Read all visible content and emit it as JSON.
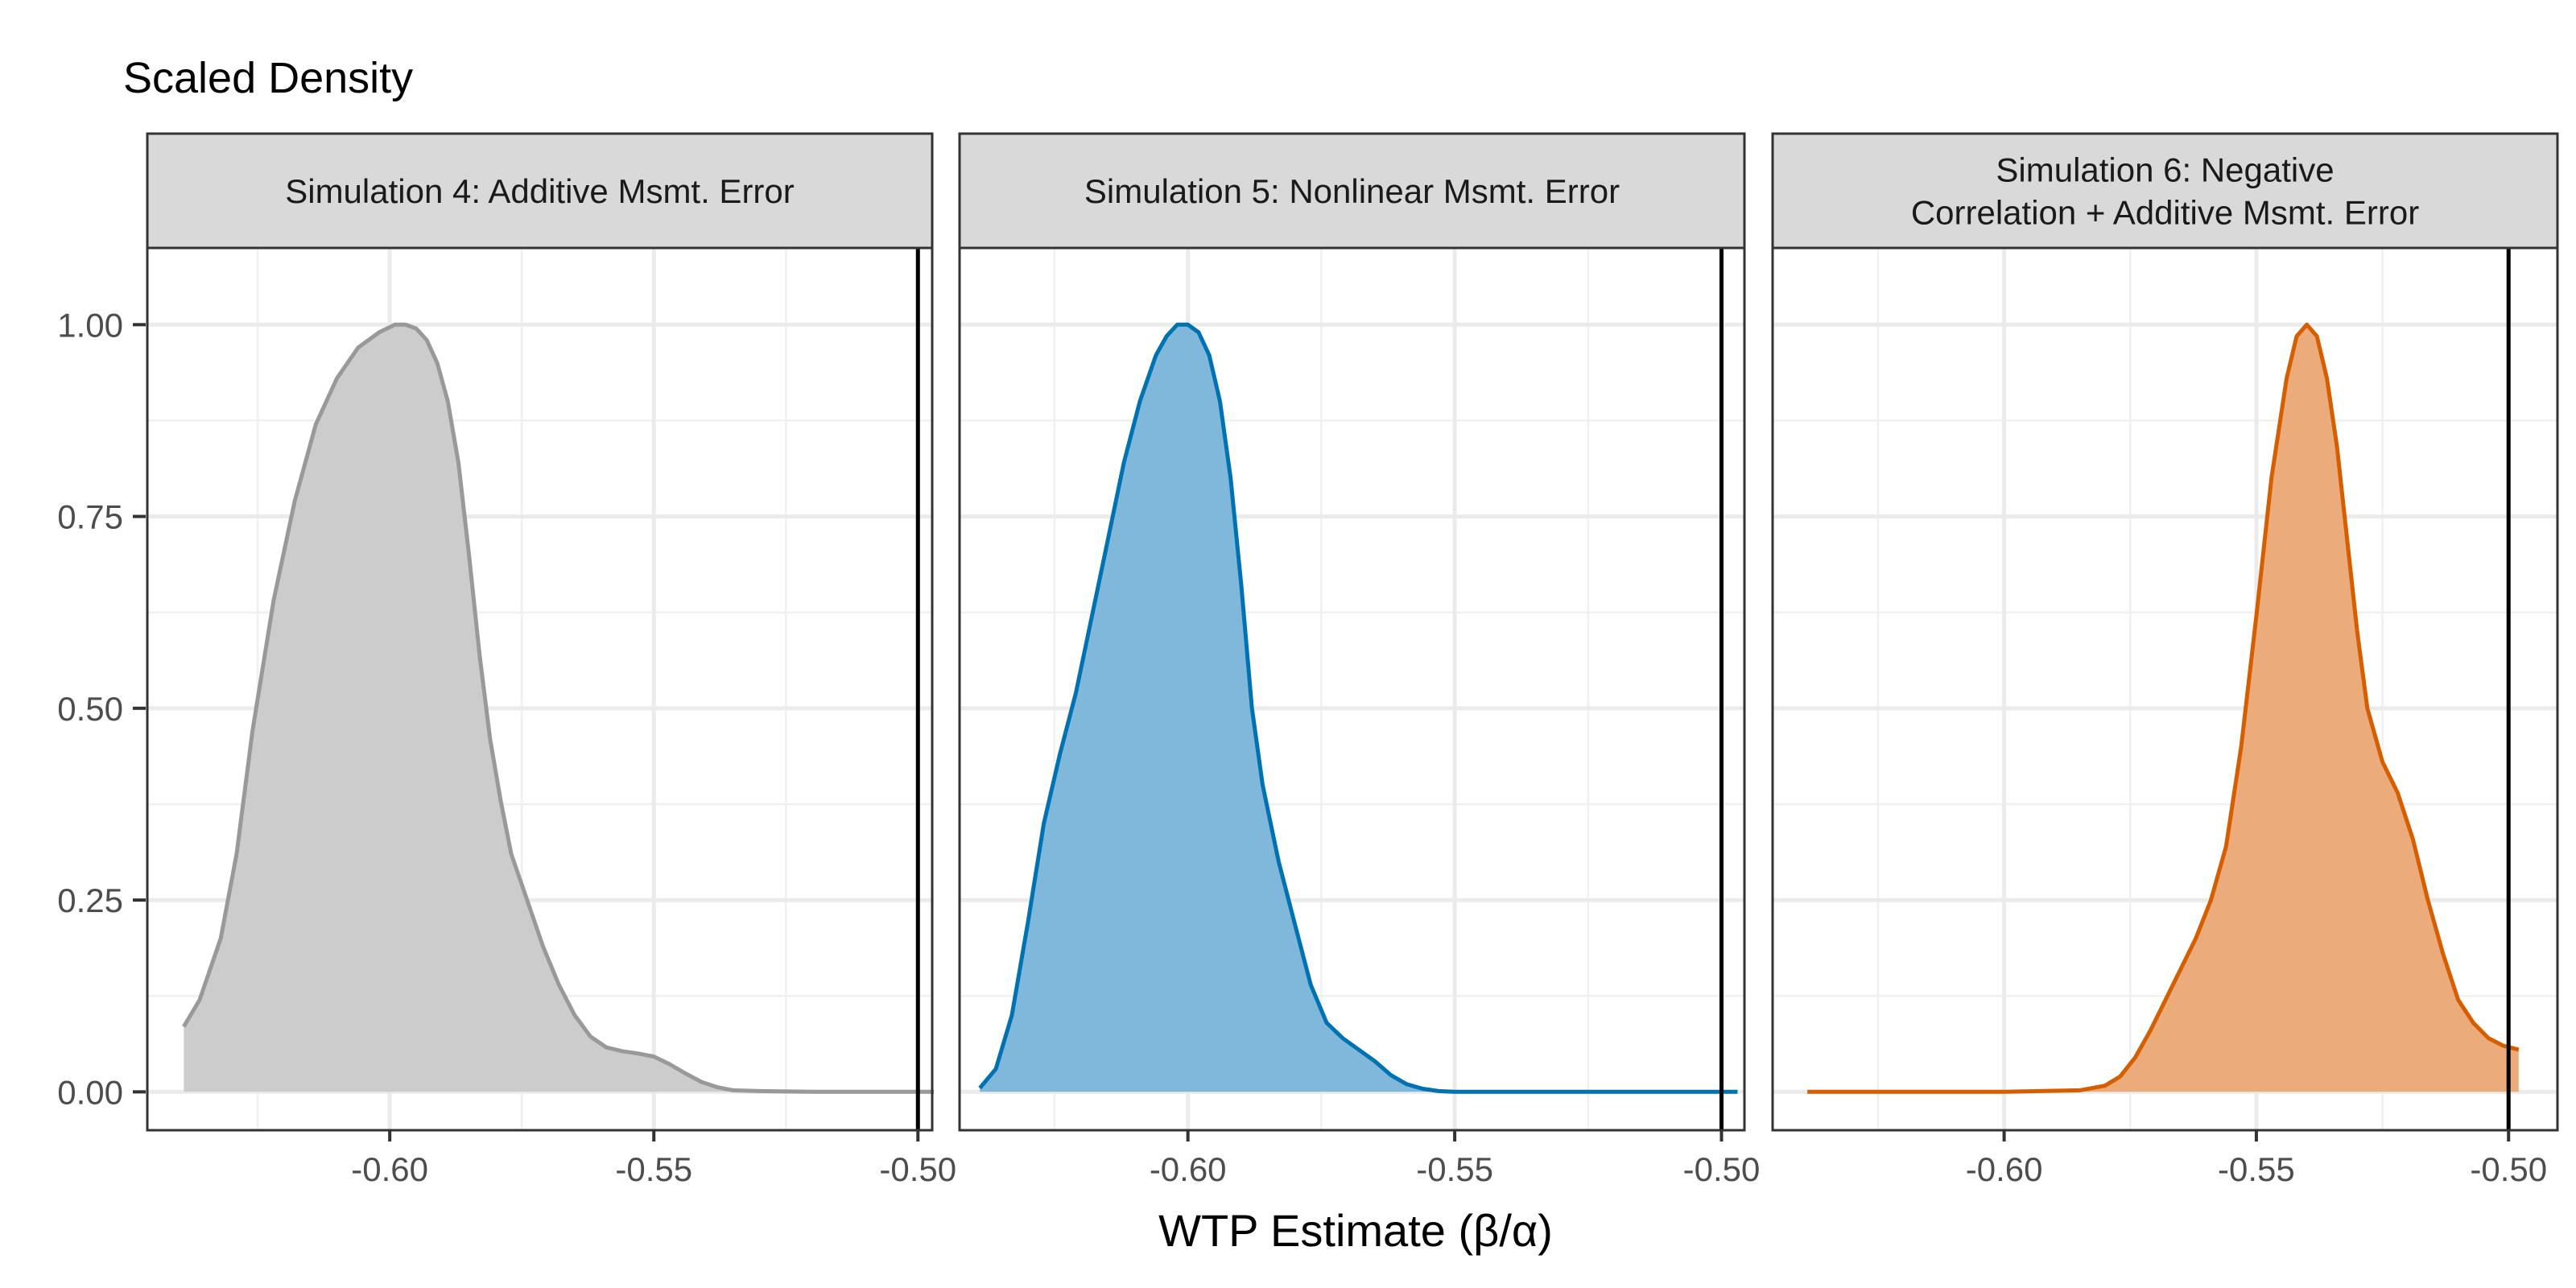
{
  "chart_data": {
    "type": "area",
    "ylabel": "Scaled Density",
    "xlabel": "WTP Estimate (β/α)",
    "ylim": [
      -0.05,
      1.1
    ],
    "yticks": [
      0.0,
      0.25,
      0.5,
      0.75,
      1.0
    ],
    "ytick_labels": [
      "0.00",
      "0.25",
      "0.50",
      "0.75",
      "1.00"
    ],
    "grid": true,
    "legend": "none",
    "reference_line_x": -0.5,
    "panels": [
      {
        "title": "Simulation 4: Additive Msmt. Error",
        "xlim": [
          -0.6459,
          -0.4973
        ],
        "xticks": [
          -0.6,
          -0.55,
          -0.5
        ],
        "xtick_labels": [
          "-0.60",
          "-0.55",
          "-0.50"
        ],
        "fill_color": "#cccccc",
        "line_color": "#999999",
        "x": [
          -0.639,
          -0.636,
          -0.632,
          -0.629,
          -0.626,
          -0.622,
          -0.618,
          -0.614,
          -0.61,
          -0.606,
          -0.602,
          -0.599,
          -0.597,
          -0.595,
          -0.593,
          -0.591,
          -0.589,
          -0.587,
          -0.585,
          -0.583,
          -0.581,
          -0.579,
          -0.577,
          -0.574,
          -0.571,
          -0.568,
          -0.565,
          -0.562,
          -0.559,
          -0.556,
          -0.553,
          -0.55,
          -0.547,
          -0.544,
          -0.541,
          -0.538,
          -0.535,
          -0.53,
          -0.52,
          -0.51,
          -0.497
        ],
        "y": [
          0.085,
          0.12,
          0.2,
          0.31,
          0.47,
          0.64,
          0.77,
          0.87,
          0.93,
          0.97,
          0.99,
          1.0,
          1.0,
          0.995,
          0.98,
          0.95,
          0.9,
          0.82,
          0.7,
          0.57,
          0.46,
          0.38,
          0.31,
          0.25,
          0.19,
          0.14,
          0.1,
          0.072,
          0.058,
          0.053,
          0.05,
          0.046,
          0.036,
          0.024,
          0.013,
          0.006,
          0.002,
          0.001,
          0.0,
          0.0,
          0.0
        ]
      },
      {
        "title": "Simulation 5: Nonlinear Msmt. Error",
        "xlim": [
          -0.6428,
          -0.4957
        ],
        "xticks": [
          -0.6,
          -0.55,
          -0.5
        ],
        "xtick_labels": [
          "-0.60",
          "-0.55",
          "-0.50"
        ],
        "fill_color": "#80b8dc",
        "line_color": "#0072b2",
        "x": [
          -0.639,
          -0.636,
          -0.633,
          -0.63,
          -0.627,
          -0.624,
          -0.621,
          -0.618,
          -0.615,
          -0.612,
          -0.609,
          -0.606,
          -0.604,
          -0.602,
          -0.6,
          -0.598,
          -0.596,
          -0.594,
          -0.592,
          -0.59,
          -0.588,
          -0.586,
          -0.583,
          -0.58,
          -0.577,
          -0.574,
          -0.571,
          -0.568,
          -0.565,
          -0.562,
          -0.559,
          -0.556,
          -0.553,
          -0.55,
          -0.545,
          -0.52,
          -0.497
        ],
        "y": [
          0.005,
          0.03,
          0.1,
          0.22,
          0.35,
          0.44,
          0.52,
          0.62,
          0.72,
          0.82,
          0.9,
          0.96,
          0.985,
          1.0,
          1.0,
          0.99,
          0.96,
          0.9,
          0.8,
          0.66,
          0.5,
          0.4,
          0.3,
          0.22,
          0.14,
          0.09,
          0.07,
          0.055,
          0.04,
          0.022,
          0.01,
          0.004,
          0.001,
          0.0,
          0.0,
          0.0,
          0.0
        ]
      },
      {
        "title": "Simulation 6: Negative\nCorrelation + Additive Msmt. Error",
        "xlim": [
          -0.6459,
          -0.4903
        ],
        "xticks": [
          -0.6,
          -0.55,
          -0.5
        ],
        "xtick_labels": [
          "-0.60",
          "-0.55",
          "-0.50"
        ],
        "fill_color": "#ebab7a",
        "line_color": "#d55e00",
        "x": [
          -0.639,
          -0.62,
          -0.6,
          -0.585,
          -0.58,
          -0.577,
          -0.574,
          -0.571,
          -0.568,
          -0.565,
          -0.562,
          -0.559,
          -0.556,
          -0.553,
          -0.55,
          -0.547,
          -0.544,
          -0.542,
          -0.54,
          -0.538,
          -0.536,
          -0.534,
          -0.532,
          -0.53,
          -0.528,
          -0.525,
          -0.522,
          -0.519,
          -0.516,
          -0.513,
          -0.51,
          -0.507,
          -0.504,
          -0.501,
          -0.498
        ],
        "y": [
          0.0,
          0.0,
          0.0,
          0.002,
          0.008,
          0.02,
          0.045,
          0.08,
          0.12,
          0.16,
          0.2,
          0.25,
          0.32,
          0.45,
          0.62,
          0.8,
          0.93,
          0.985,
          1.0,
          0.985,
          0.93,
          0.84,
          0.72,
          0.6,
          0.5,
          0.43,
          0.39,
          0.33,
          0.25,
          0.18,
          0.12,
          0.09,
          0.07,
          0.06,
          0.055
        ]
      }
    ]
  }
}
